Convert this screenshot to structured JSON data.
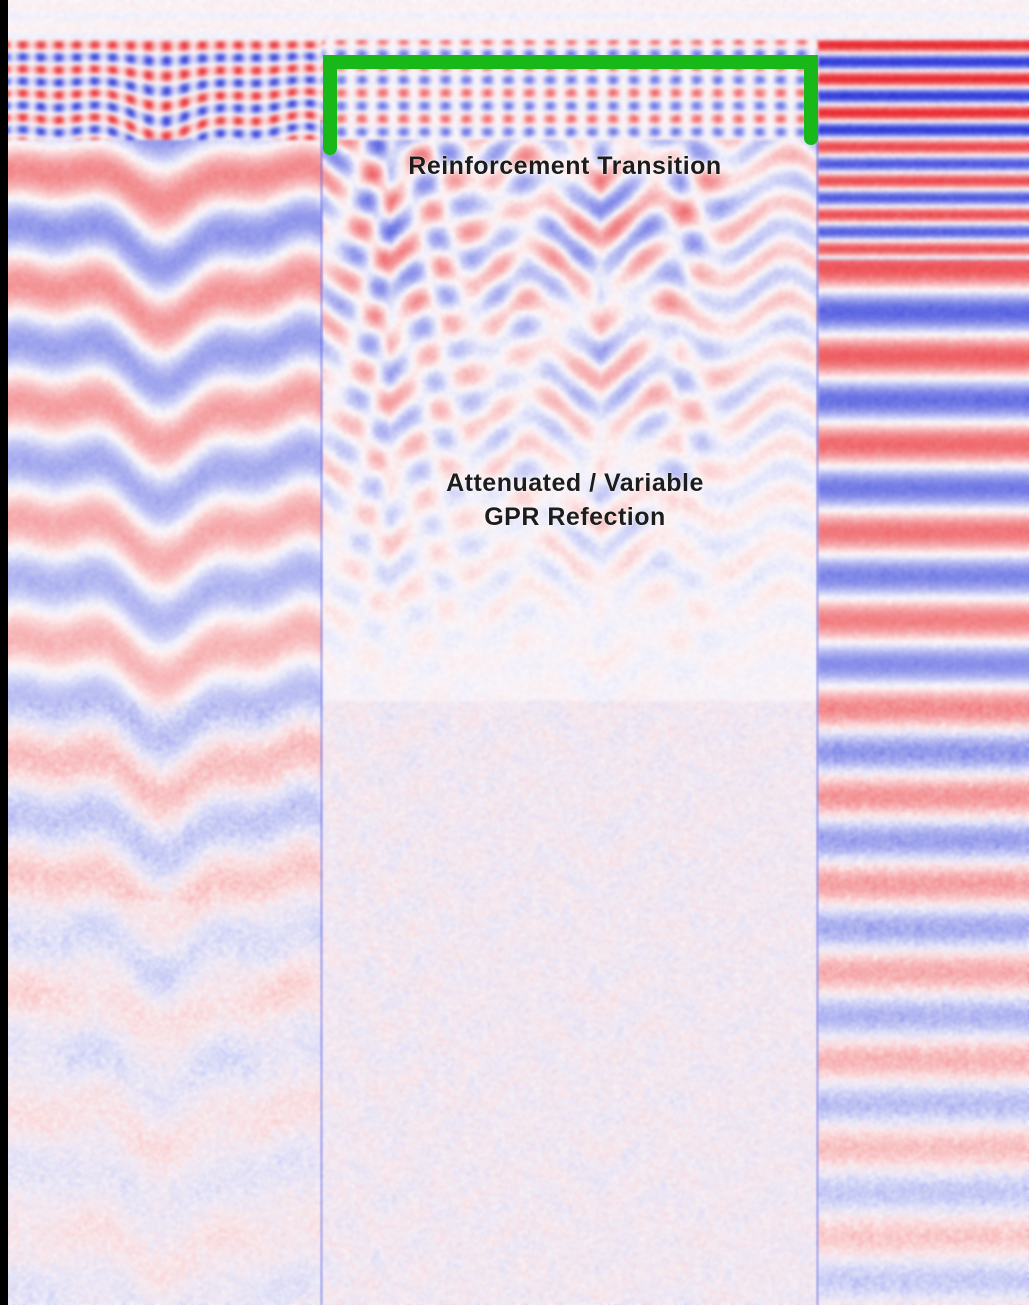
{
  "figure": {
    "type": "GPR radargram",
    "colors": {
      "positive": "#e8252b",
      "negative": "#2a36d8",
      "background": "#ffffff",
      "bracket": "#18b818",
      "text": "#1c1c1c"
    },
    "annotations": {
      "top_label": "Reinforcement Transition",
      "middle_label_line1": "Attenuated / Variable",
      "middle_label_line2": "GPR Refection"
    }
  }
}
